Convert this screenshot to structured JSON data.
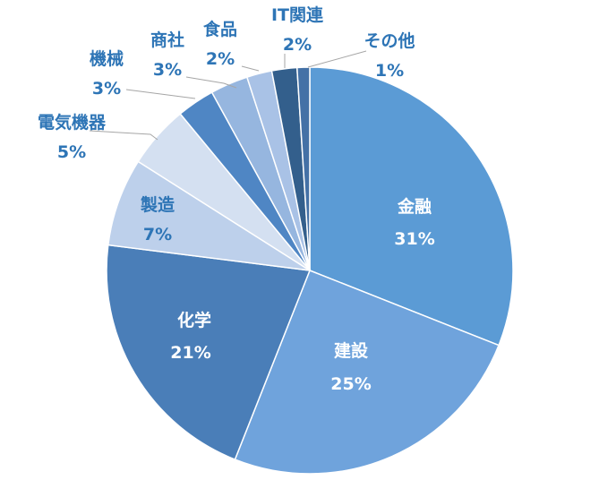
{
  "chart_data": {
    "type": "pie",
    "title": "",
    "slices": [
      {
        "label": "金融",
        "value": 31,
        "display": "31%",
        "color": "#5b9bd5"
      },
      {
        "label": "建設",
        "value": 25,
        "display": "25%",
        "color": "#6fa3dc"
      },
      {
        "label": "化学",
        "value": 21,
        "display": "21%",
        "color": "#4a7eb8"
      },
      {
        "label": "製造",
        "value": 7,
        "display": "7%",
        "color": "#bdd0eb"
      },
      {
        "label": "電気機器",
        "value": 5,
        "display": "5%",
        "color": "#d4e0f1"
      },
      {
        "label": "機械",
        "value": 3,
        "display": "3%",
        "color": "#4f86c4"
      },
      {
        "label": "商社",
        "value": 3,
        "display": "3%",
        "color": "#96b6df"
      },
      {
        "label": "食品",
        "value": 2,
        "display": "2%",
        "color": "#a9c2e6"
      },
      {
        "label": "IT関連",
        "value": 2,
        "display": "2%",
        "color": "#335f8c"
      },
      {
        "label": "その他",
        "value": 1,
        "display": "1%",
        "color": "#4471a6"
      }
    ],
    "start_angle": "12 o'clock",
    "direction": "clockwise",
    "legend": "none",
    "inside_label_color": "#ffffff",
    "outside_label_color": "#2e75b6"
  }
}
